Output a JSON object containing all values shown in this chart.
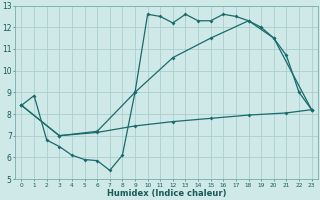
{
  "xlabel": "Humidex (Indice chaleur)",
  "bg_color": "#cfe8e8",
  "line_color": "#1a6b6b",
  "grid_color": "#b8d8d8",
  "xlim": [
    -0.5,
    23.5
  ],
  "ylim": [
    5,
    13
  ],
  "xticks": [
    0,
    1,
    2,
    3,
    4,
    5,
    6,
    7,
    8,
    9,
    10,
    11,
    12,
    13,
    14,
    15,
    16,
    17,
    18,
    19,
    20,
    21,
    22,
    23
  ],
  "yticks": [
    5,
    6,
    7,
    8,
    9,
    10,
    11,
    12,
    13
  ],
  "line1_x": [
    0,
    1,
    2,
    3,
    4,
    5,
    6,
    7,
    8,
    9,
    10,
    11,
    12,
    13,
    14,
    15,
    16,
    17,
    18,
    19,
    20,
    21,
    22,
    23
  ],
  "line1_y": [
    8.4,
    8.85,
    6.8,
    6.5,
    6.1,
    5.9,
    5.85,
    5.4,
    6.1,
    9.0,
    12.6,
    12.5,
    12.2,
    12.6,
    12.3,
    12.3,
    12.6,
    12.5,
    12.3,
    12.0,
    11.5,
    10.7,
    9.0,
    8.2
  ],
  "line2_x": [
    0,
    3,
    6,
    9,
    12,
    15,
    18,
    20,
    23
  ],
  "line2_y": [
    8.4,
    7.0,
    7.2,
    9.0,
    10.6,
    11.5,
    12.3,
    11.5,
    8.2
  ],
  "line3_x": [
    0,
    3,
    6,
    9,
    12,
    15,
    18,
    21,
    23
  ],
  "line3_y": [
    8.4,
    7.0,
    7.15,
    7.45,
    7.65,
    7.8,
    7.95,
    8.05,
    8.2
  ]
}
